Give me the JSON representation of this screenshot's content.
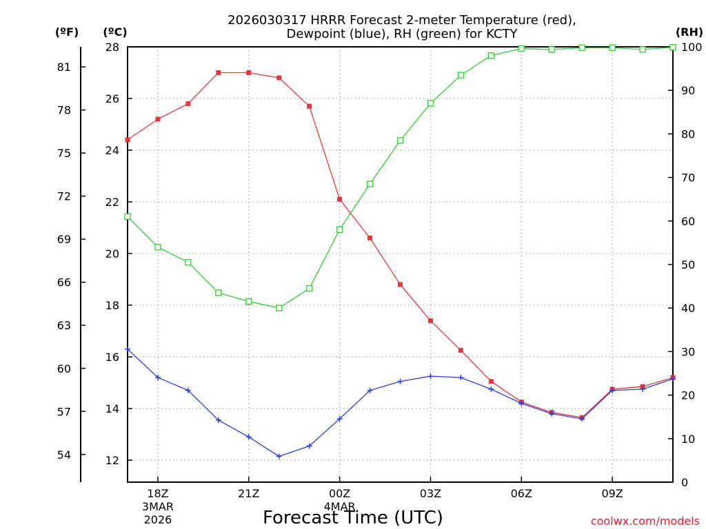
{
  "chart_data": {
    "type": "line",
    "title": "2026030317 HRRR Forecast 2-meter Temperature (red),",
    "subtitle": "Dewpoint (blue), RH (green) for KCTY",
    "xlabel": "Forecast Time (UTC)",
    "credit": "coolwx.com/models",
    "units": {
      "fahrenheit": "(ºF)",
      "celsius": "(ºC)",
      "rh": "(RH)"
    },
    "x_range": [
      17,
      35
    ],
    "x_ticks": [
      {
        "x": 18,
        "label": "18Z",
        "sub1": "3MAR",
        "sub2": "2026"
      },
      {
        "x": 21,
        "label": "21Z",
        "sub1": "",
        "sub2": ""
      },
      {
        "x": 24,
        "label": "00Z",
        "sub1": "4MAR",
        "sub2": ""
      },
      {
        "x": 27,
        "label": "03Z",
        "sub1": "",
        "sub2": ""
      },
      {
        "x": 30,
        "label": "06Z",
        "sub1": "",
        "sub2": ""
      },
      {
        "x": 33,
        "label": "09Z",
        "sub1": "",
        "sub2": ""
      }
    ],
    "celsius_axis": {
      "min": 11.15,
      "max": 28.0,
      "ticks": [
        12,
        14,
        16,
        18,
        20,
        22,
        24,
        26,
        28
      ]
    },
    "fahrenheit_ticks": [
      54,
      57,
      60,
      63,
      66,
      69,
      72,
      75,
      78,
      81
    ],
    "rh_axis": {
      "min": 0,
      "max": 100,
      "ticks": [
        0,
        10,
        20,
        30,
        40,
        50,
        60,
        70,
        80,
        90,
        100
      ]
    },
    "colors": {
      "temperature": "#e8343c",
      "dewpoint": "#2d3cdc",
      "rh": "#2fcd2f",
      "grid": "#a0a0a0"
    },
    "series": [
      {
        "name": "Temperature",
        "axis": "celsius",
        "marker": "filled-square",
        "x": [
          17,
          18,
          19,
          20,
          21,
          22,
          23,
          24,
          25,
          26,
          27,
          28,
          29,
          30,
          31,
          32,
          33,
          34,
          35
        ],
        "values": [
          24.4,
          25.2,
          25.8,
          27.0,
          27.0,
          26.8,
          25.7,
          22.1,
          20.6,
          18.8,
          17.4,
          16.25,
          15.05,
          14.25,
          13.85,
          13.65,
          14.75,
          14.85,
          15.2
        ]
      },
      {
        "name": "Dewpoint",
        "axis": "celsius",
        "marker": "plus",
        "x": [
          17,
          18,
          19,
          20,
          21,
          22,
          23,
          24,
          25,
          26,
          27,
          28,
          29,
          30,
          31,
          32,
          33,
          34,
          35
        ],
        "values": [
          16.3,
          15.2,
          14.7,
          13.55,
          12.9,
          12.15,
          12.55,
          13.6,
          14.7,
          15.05,
          15.25,
          15.2,
          14.75,
          14.2,
          13.8,
          13.6,
          14.7,
          14.75,
          15.15
        ]
      },
      {
        "name": "RH",
        "axis": "rh",
        "marker": "open-square",
        "x": [
          17,
          18,
          19,
          20,
          21,
          22,
          23,
          24,
          25,
          26,
          27,
          28,
          29,
          30,
          31,
          32,
          33,
          34,
          35
        ],
        "values": [
          61,
          54,
          50.5,
          43.5,
          41.5,
          40,
          44.5,
          58,
          68.5,
          78.5,
          87,
          93.5,
          98,
          99.6,
          99.4,
          99.8,
          99.8,
          99.4,
          99.9
        ]
      }
    ]
  }
}
